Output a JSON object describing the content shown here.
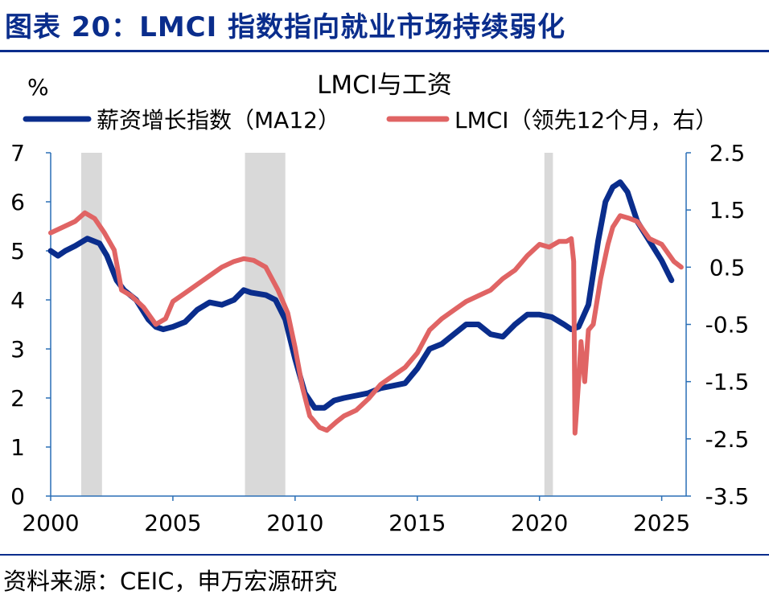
{
  "figure": {
    "title": "图表 20：LMCI 指数指向就业市场持续弱化",
    "source": "资料来源：CEIC，申万宏源研究"
  },
  "colors": {
    "title": "#0a2d8c",
    "wage_series": "#0a2d8c",
    "lmci_series": "#e06464",
    "recession_band": "#d9d9d9",
    "axis": "#2a6fb5"
  },
  "chart_data": {
    "type": "line",
    "title": "LMCI与工资",
    "left_axis": {
      "unit_label": "%",
      "range": [
        0,
        7
      ],
      "ticks": [
        "0",
        "1",
        "2",
        "3",
        "4",
        "5",
        "6",
        "7"
      ]
    },
    "right_axis": {
      "range": [
        -3.5,
        2.5
      ],
      "ticks": [
        "2.5",
        "1.5",
        "0.5",
        "-0.5",
        "-1.5",
        "-2.5",
        "-3.5"
      ]
    },
    "x_axis": {
      "range": [
        2000,
        2026
      ],
      "ticks": [
        "2000",
        "2005",
        "2010",
        "2015",
        "2020",
        "2025"
      ]
    },
    "grid": false,
    "legend_position": "top",
    "shaded_periods": [
      [
        2001.25,
        2002.1
      ],
      [
        2007.95,
        2009.6
      ],
      [
        2020.2,
        2020.55
      ]
    ],
    "series": [
      {
        "name": "薪资增长指数（MA12）",
        "axis": "left",
        "points": [
          [
            2000.0,
            5.0
          ],
          [
            2000.3,
            4.9
          ],
          [
            2000.6,
            5.0
          ],
          [
            2001.0,
            5.1
          ],
          [
            2001.5,
            5.25
          ],
          [
            2002.0,
            5.15
          ],
          [
            2002.3,
            4.9
          ],
          [
            2002.7,
            4.4
          ],
          [
            2003.0,
            4.2
          ],
          [
            2003.5,
            4.0
          ],
          [
            2004.0,
            3.6
          ],
          [
            2004.3,
            3.45
          ],
          [
            2004.6,
            3.4
          ],
          [
            2005.0,
            3.45
          ],
          [
            2005.5,
            3.55
          ],
          [
            2006.0,
            3.8
          ],
          [
            2006.5,
            3.95
          ],
          [
            2007.0,
            3.9
          ],
          [
            2007.5,
            4.0
          ],
          [
            2007.9,
            4.2
          ],
          [
            2008.2,
            4.15
          ],
          [
            2008.8,
            4.1
          ],
          [
            2009.2,
            4.0
          ],
          [
            2009.6,
            3.6
          ],
          [
            2010.0,
            2.8
          ],
          [
            2010.4,
            2.1
          ],
          [
            2010.8,
            1.8
          ],
          [
            2011.2,
            1.8
          ],
          [
            2011.6,
            1.95
          ],
          [
            2012.0,
            2.0
          ],
          [
            2012.5,
            2.05
          ],
          [
            2013.0,
            2.1
          ],
          [
            2013.5,
            2.2
          ],
          [
            2014.0,
            2.25
          ],
          [
            2014.5,
            2.3
          ],
          [
            2015.0,
            2.6
          ],
          [
            2015.5,
            3.0
          ],
          [
            2016.0,
            3.1
          ],
          [
            2016.5,
            3.3
          ],
          [
            2017.0,
            3.5
          ],
          [
            2017.5,
            3.5
          ],
          [
            2018.0,
            3.3
          ],
          [
            2018.5,
            3.25
          ],
          [
            2019.0,
            3.5
          ],
          [
            2019.5,
            3.7
          ],
          [
            2020.0,
            3.7
          ],
          [
            2020.5,
            3.65
          ],
          [
            2021.0,
            3.5
          ],
          [
            2021.3,
            3.4
          ],
          [
            2021.6,
            3.45
          ],
          [
            2022.0,
            3.9
          ],
          [
            2022.4,
            5.2
          ],
          [
            2022.7,
            6.0
          ],
          [
            2023.0,
            6.3
          ],
          [
            2023.3,
            6.4
          ],
          [
            2023.6,
            6.2
          ],
          [
            2024.0,
            5.6
          ],
          [
            2024.5,
            5.2
          ],
          [
            2025.0,
            4.8
          ],
          [
            2025.3,
            4.5
          ],
          [
            2025.4,
            4.4
          ]
        ]
      },
      {
        "name": "LMCI（领先12个月，右）",
        "axis": "right",
        "points": [
          [
            2000.0,
            1.1
          ],
          [
            2000.5,
            1.2
          ],
          [
            2001.0,
            1.3
          ],
          [
            2001.4,
            1.45
          ],
          [
            2001.8,
            1.35
          ],
          [
            2002.2,
            1.1
          ],
          [
            2002.6,
            0.8
          ],
          [
            2002.9,
            0.1
          ],
          [
            2003.3,
            0.0
          ],
          [
            2003.8,
            -0.2
          ],
          [
            2004.3,
            -0.5
          ],
          [
            2004.7,
            -0.4
          ],
          [
            2005.0,
            -0.1
          ],
          [
            2005.5,
            0.05
          ],
          [
            2006.0,
            0.2
          ],
          [
            2006.5,
            0.35
          ],
          [
            2007.0,
            0.5
          ],
          [
            2007.5,
            0.6
          ],
          [
            2007.9,
            0.65
          ],
          [
            2008.3,
            0.62
          ],
          [
            2008.8,
            0.5
          ],
          [
            2009.3,
            0.1
          ],
          [
            2009.7,
            -0.3
          ],
          [
            2010.0,
            -0.9
          ],
          [
            2010.3,
            -1.6
          ],
          [
            2010.6,
            -2.1
          ],
          [
            2011.0,
            -2.3
          ],
          [
            2011.3,
            -2.35
          ],
          [
            2011.7,
            -2.2
          ],
          [
            2012.0,
            -2.1
          ],
          [
            2012.5,
            -2.0
          ],
          [
            2013.0,
            -1.8
          ],
          [
            2013.5,
            -1.55
          ],
          [
            2014.0,
            -1.4
          ],
          [
            2014.5,
            -1.25
          ],
          [
            2015.0,
            -1.0
          ],
          [
            2015.5,
            -0.6
          ],
          [
            2016.0,
            -0.4
          ],
          [
            2016.5,
            -0.25
          ],
          [
            2017.0,
            -0.1
          ],
          [
            2017.5,
            0.0
          ],
          [
            2018.0,
            0.1
          ],
          [
            2018.5,
            0.3
          ],
          [
            2019.0,
            0.45
          ],
          [
            2019.5,
            0.7
          ],
          [
            2020.0,
            0.9
          ],
          [
            2020.4,
            0.85
          ],
          [
            2020.8,
            0.95
          ],
          [
            2021.1,
            0.95
          ],
          [
            2021.3,
            1.0
          ],
          [
            2021.4,
            0.6
          ],
          [
            2021.45,
            -2.4
          ],
          [
            2021.6,
            -1.5
          ],
          [
            2021.7,
            -0.8
          ],
          [
            2021.85,
            -1.5
          ],
          [
            2022.0,
            -0.6
          ],
          [
            2022.2,
            -0.5
          ],
          [
            2022.5,
            0.3
          ],
          [
            2022.8,
            0.9
          ],
          [
            2023.0,
            1.2
          ],
          [
            2023.3,
            1.4
          ],
          [
            2023.7,
            1.35
          ],
          [
            2024.0,
            1.3
          ],
          [
            2024.5,
            1.0
          ],
          [
            2025.0,
            0.9
          ],
          [
            2025.5,
            0.6
          ],
          [
            2025.8,
            0.5
          ]
        ]
      }
    ]
  }
}
